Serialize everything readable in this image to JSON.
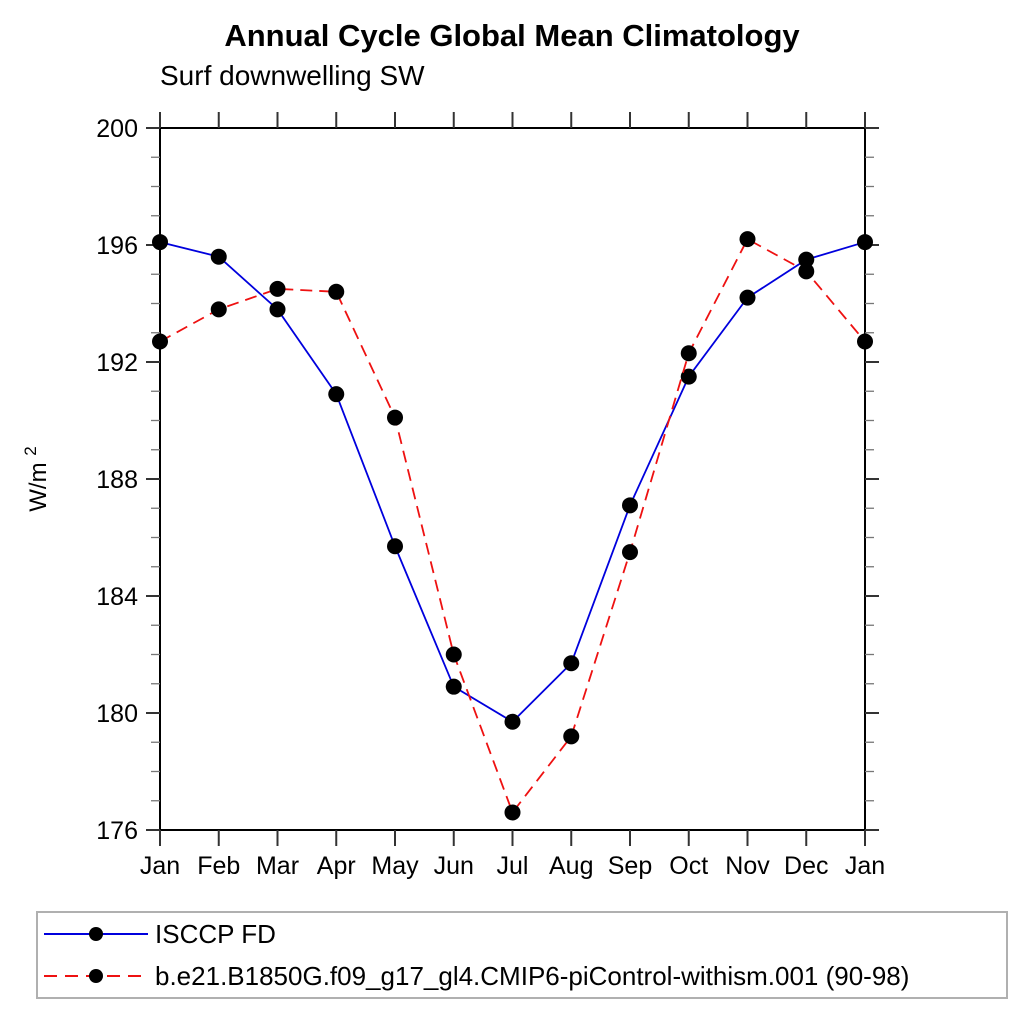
{
  "title": "Annual Cycle Global Mean Climatology",
  "subtitle": "Surf downwelling SW",
  "ylabel": {
    "base": "W/m",
    "sup": "2"
  },
  "chart_data": {
    "type": "line",
    "categories": [
      "Jan",
      "Feb",
      "Mar",
      "Apr",
      "May",
      "Jun",
      "Jul",
      "Aug",
      "Sep",
      "Oct",
      "Nov",
      "Dec",
      "Jan"
    ],
    "series": [
      {
        "name": "ISCCP FD",
        "color": "#0000dd",
        "line_style": "solid",
        "marker": "filled-circle",
        "marker_color": "#000000",
        "values": [
          196.1,
          195.6,
          193.8,
          190.9,
          185.7,
          180.9,
          179.7,
          181.7,
          187.1,
          191.5,
          194.2,
          195.5,
          196.1
        ]
      },
      {
        "name": "b.e21.B1850G.f09_g17_gl4.CMIP6-piControl-withism.001 (90-98)",
        "color": "#ee1111",
        "line_style": "dashed",
        "marker": "filled-circle",
        "marker_color": "#000000",
        "values": [
          192.7,
          193.8,
          194.5,
          194.4,
          190.1,
          182.0,
          176.6,
          179.2,
          185.5,
          192.3,
          196.2,
          195.1,
          192.7
        ]
      }
    ],
    "ylim": [
      176,
      200
    ],
    "ytick_major_step": 4,
    "ytick_minor_step": 1,
    "ytick_labels": [
      "176",
      "180",
      "184",
      "188",
      "192",
      "196",
      "200"
    ],
    "grid": false,
    "legend_position": "bottom"
  }
}
